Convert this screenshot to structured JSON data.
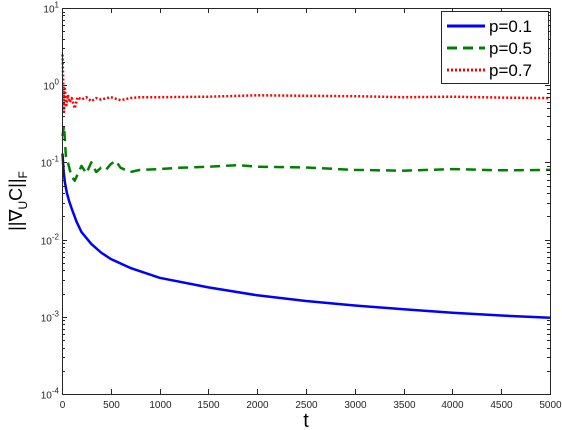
{
  "chart_data": {
    "type": "line",
    "xlabel": "t",
    "ylabel": "||∇_U C||_F",
    "ylabel_parts": {
      "pre": "||∇",
      "sub_u": "U",
      "mid": "C||",
      "sub_f": "F"
    },
    "xlim": [
      0,
      5000
    ],
    "ylim": [
      0.0001,
      10
    ],
    "yscale": "log",
    "grid": false,
    "legend_position": "top-right",
    "x_ticks": [
      0,
      500,
      1000,
      1500,
      2000,
      2500,
      3000,
      3500,
      4000,
      4500,
      5000
    ],
    "y_ticks": [
      {
        "value": 0.0001,
        "base": "10",
        "exp": "-4"
      },
      {
        "value": 0.001,
        "base": "10",
        "exp": "-3"
      },
      {
        "value": 0.01,
        "base": "10",
        "exp": "-2"
      },
      {
        "value": 0.1,
        "base": "10",
        "exp": "-1"
      },
      {
        "value": 1,
        "base": "10",
        "exp": "0"
      },
      {
        "value": 10,
        "base": "10",
        "exp": "1"
      }
    ],
    "series": [
      {
        "name": "p=0.1",
        "color": "#0000ff",
        "style": "solid",
        "x": [
          5,
          15,
          30,
          50,
          75,
          100,
          150,
          200,
          300,
          400,
          500,
          700,
          1000,
          1500,
          2000,
          2500,
          3000,
          3500,
          4000,
          4500,
          5000
        ],
        "y": [
          0.13,
          0.08,
          0.055,
          0.04,
          0.031,
          0.025,
          0.017,
          0.0125,
          0.0088,
          0.0068,
          0.0056,
          0.0043,
          0.0032,
          0.0024,
          0.0019,
          0.0016,
          0.0014,
          0.00125,
          0.00113,
          0.00104,
          0.00097
        ]
      },
      {
        "name": "p=0.5",
        "color": "#008000",
        "style": "dashed",
        "x": [
          5,
          20,
          40,
          60,
          80,
          100,
          130,
          160,
          200,
          250,
          300,
          350,
          400,
          450,
          500,
          550,
          600,
          700,
          800,
          1000,
          1200,
          1500,
          1800,
          2000,
          2500,
          3000,
          3500,
          4000,
          4500,
          5000
        ],
        "y": [
          0.22,
          0.3,
          0.12,
          0.1,
          0.08,
          0.065,
          0.058,
          0.07,
          0.09,
          0.072,
          0.1,
          0.075,
          0.085,
          0.08,
          0.095,
          0.105,
          0.085,
          0.075,
          0.08,
          0.082,
          0.085,
          0.088,
          0.092,
          0.088,
          0.086,
          0.08,
          0.078,
          0.082,
          0.079,
          0.08
        ]
      },
      {
        "name": "p=0.7",
        "color": "#ff0000",
        "style": "dotted",
        "x": [
          5,
          12,
          20,
          30,
          45,
          60,
          80,
          100,
          130,
          160,
          200,
          250,
          300,
          350,
          400,
          500,
          600,
          700,
          800,
          1000,
          1500,
          2000,
          2500,
          3000,
          3500,
          4000,
          4500,
          5000
        ],
        "y": [
          2.5,
          1.2,
          0.45,
          0.9,
          0.55,
          0.75,
          0.6,
          0.68,
          0.5,
          0.7,
          0.65,
          0.7,
          0.62,
          0.68,
          0.65,
          0.7,
          0.64,
          0.68,
          0.7,
          0.7,
          0.71,
          0.74,
          0.73,
          0.72,
          0.7,
          0.71,
          0.69,
          0.68
        ]
      }
    ]
  }
}
